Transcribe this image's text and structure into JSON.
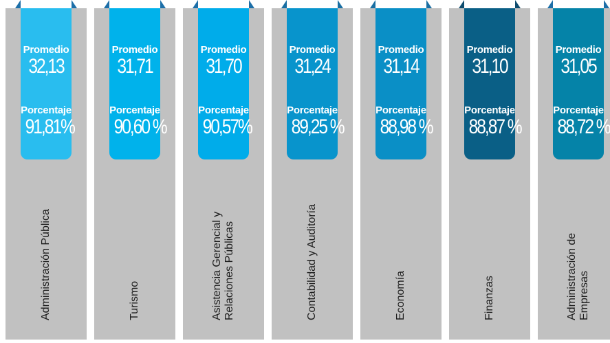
{
  "chart_data": {
    "type": "bar",
    "categories": [
      "Administración Pública",
      "Turismo",
      "Asistencia Gerencial y Relaciones Públicas",
      "Contabilidad y Auditoría",
      "Economía",
      "Finanzas",
      "Administración de Empresas"
    ],
    "series": [
      {
        "name": "Promedio",
        "values": [
          32.13,
          31.71,
          31.7,
          31.24,
          31.14,
          31.1,
          31.05
        ],
        "labels": [
          "32,13",
          "31,71",
          "31,70",
          "31,24",
          "31,14",
          "31,10",
          "31,05"
        ]
      },
      {
        "name": "Porcentaje",
        "values": [
          91.81,
          90.6,
          90.57,
          89.25,
          88.98,
          88.87,
          88.72
        ],
        "labels": [
          "91,81%",
          "90,60 %",
          "90,57%",
          "89,25 %",
          "88,98  %",
          "88,87 %",
          "88,72 %"
        ]
      }
    ],
    "title": "",
    "xlabel": "",
    "ylabel": "",
    "legend": "none",
    "grid": false
  },
  "colors": {
    "column_background": "#c1c1c1",
    "tabs": [
      "#29bdef",
      "#00b2eb",
      "#00acea",
      "#0894cc",
      "#0a8fc6",
      "#0a5f86",
      "#0583a8"
    ],
    "folds": [
      "#1d6fa8",
      "#1d6fa8",
      "#1d6fa8",
      "#1a6fa3",
      "#1a6fa3",
      "#0e4c6e",
      "#1d6fa8"
    ],
    "text": "#ffffff",
    "category_text": "#1d1d1d"
  }
}
